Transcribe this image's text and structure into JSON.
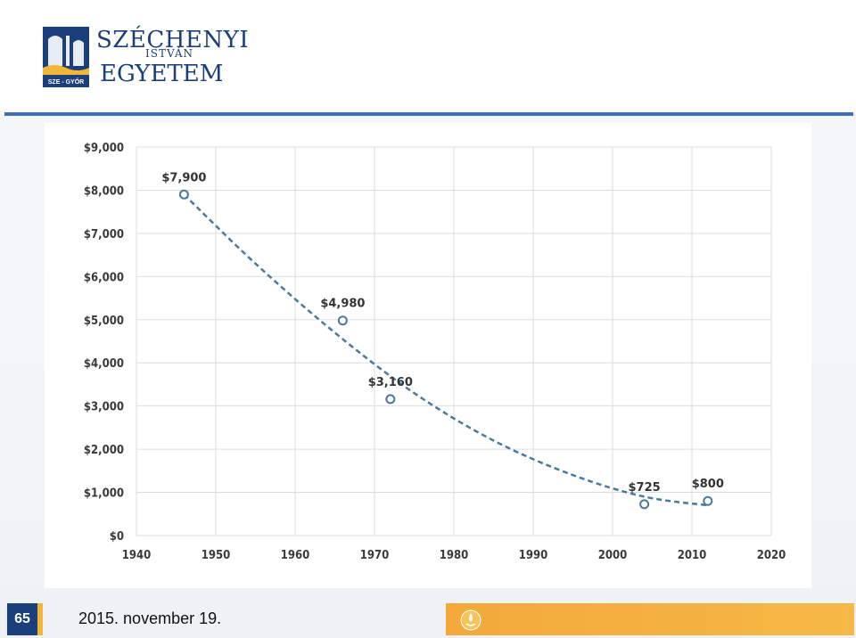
{
  "header": {
    "logo_line1": "SZÉCHENYI",
    "logo_line2": "ISTVÁN",
    "logo_line3": "EGYETEM",
    "logo_badge": "SZE - GYŐR"
  },
  "colors": {
    "brand_blue": "#1b3f7a",
    "rule_blue": "#3f6fb3",
    "accent_gold": "#f2a93a",
    "series_color": "#4a7a98"
  },
  "chart_data": {
    "type": "scatter",
    "title": "",
    "xlabel": "",
    "ylabel": "",
    "xlim": [
      1940,
      2020
    ],
    "ylim": [
      0,
      9000
    ],
    "x_ticks": [
      "1940",
      "1950",
      "1960",
      "1970",
      "1980",
      "1990",
      "2000",
      "2010",
      "2020"
    ],
    "y_ticks": [
      "$0",
      "$1,000",
      "$2,000",
      "$3,000",
      "$4,000",
      "$5,000",
      "$6,000",
      "$7,000",
      "$8,000",
      "$9,000"
    ],
    "grid": true,
    "legend": "none",
    "points": [
      {
        "x": 1946,
        "y": 7900,
        "label": "$7,900"
      },
      {
        "x": 1966,
        "y": 4980,
        "label": "$4,980"
      },
      {
        "x": 1972,
        "y": 3160,
        "label": "$3,160"
      },
      {
        "x": 2004,
        "y": 725,
        "label": "$725"
      },
      {
        "x": 2012,
        "y": 800,
        "label": "$800"
      }
    ],
    "trendline": {
      "style": "dashed",
      "points": [
        {
          "x": 1946,
          "y": 7900
        },
        {
          "x": 1955,
          "y": 6300
        },
        {
          "x": 1965,
          "y": 4700
        },
        {
          "x": 1975,
          "y": 3300
        },
        {
          "x": 1985,
          "y": 2200
        },
        {
          "x": 1995,
          "y": 1400
        },
        {
          "x": 2004,
          "y": 900
        },
        {
          "x": 2012,
          "y": 700
        }
      ]
    }
  },
  "footer": {
    "page_number": "65",
    "date": "2015. november 19."
  }
}
